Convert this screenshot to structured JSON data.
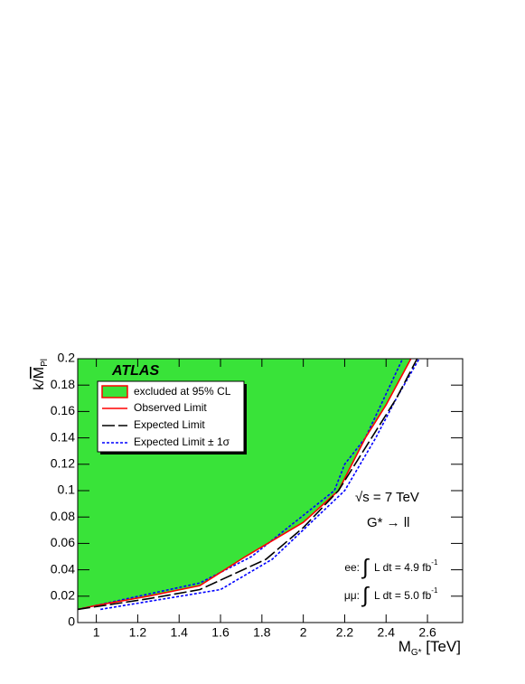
{
  "chart_data": {
    "type": "line",
    "xlim": [
      0.91,
      2.77
    ],
    "ylim": [
      0,
      0.2
    ],
    "xticks": [
      1,
      1.2,
      1.4,
      1.6,
      1.8,
      2,
      2.2,
      2.4,
      2.6
    ],
    "yticks": [
      0,
      0.02,
      0.04,
      0.06,
      0.08,
      0.1,
      0.12,
      0.14,
      0.16,
      0.18,
      0.2
    ],
    "xlabel": {
      "main": "M",
      "sub": "G*",
      "unit": " [TeV]"
    },
    "ylabel": {
      "pre": "k/",
      "main": "M",
      "sub": "Pl"
    },
    "excluded": {
      "name": "excluded at 95% CL",
      "color": "#39e339"
    },
    "series": [
      {
        "name": "Observed Limit",
        "color": "#ff0000",
        "dash": "none",
        "x": [
          0.91,
          1.0,
          1.25,
          1.5,
          1.72,
          2.0,
          2.17,
          2.3,
          2.4,
          2.52
        ],
        "values": [
          0.01,
          0.013,
          0.02,
          0.028,
          0.05,
          0.076,
          0.1,
          0.14,
          0.165,
          0.2
        ]
      },
      {
        "name": "Expected Limit",
        "color": "#000000",
        "dash": "14 4",
        "x": [
          0.91,
          1.25,
          1.5,
          1.82,
          2.0,
          2.17,
          2.33,
          2.45,
          2.55
        ],
        "values": [
          0.01,
          0.018,
          0.025,
          0.048,
          0.072,
          0.1,
          0.14,
          0.17,
          0.2
        ]
      }
    ],
    "band": {
      "name": "Expected Limit ± 1σ",
      "color": "#0000ff",
      "dash": "3 2",
      "upper": {
        "x": [
          0.91,
          1.5,
          1.75,
          2.15,
          2.2,
          2.3,
          2.48
        ],
        "values": [
          0.01,
          0.03,
          0.05,
          0.1,
          0.12,
          0.14,
          0.2
        ]
      },
      "lower": {
        "x": [
          1.02,
          1.6,
          1.85,
          2.2,
          2.35,
          2.45,
          2.56
        ],
        "values": [
          0.01,
          0.025,
          0.048,
          0.1,
          0.14,
          0.17,
          0.2
        ]
      }
    },
    "annotations": {
      "experiment": "ATLAS",
      "energy": "√s = 7 TeV",
      "process": "G* → ll",
      "ee": {
        "label": "ee:",
        "integral": "∫",
        "text": "L dt = 4.9 fb",
        "exp": "-1"
      },
      "mumu": {
        "label": "μμ:",
        "integral": "∫",
        "text": "L dt = 5.0 fb",
        "exp": "-1"
      }
    }
  }
}
